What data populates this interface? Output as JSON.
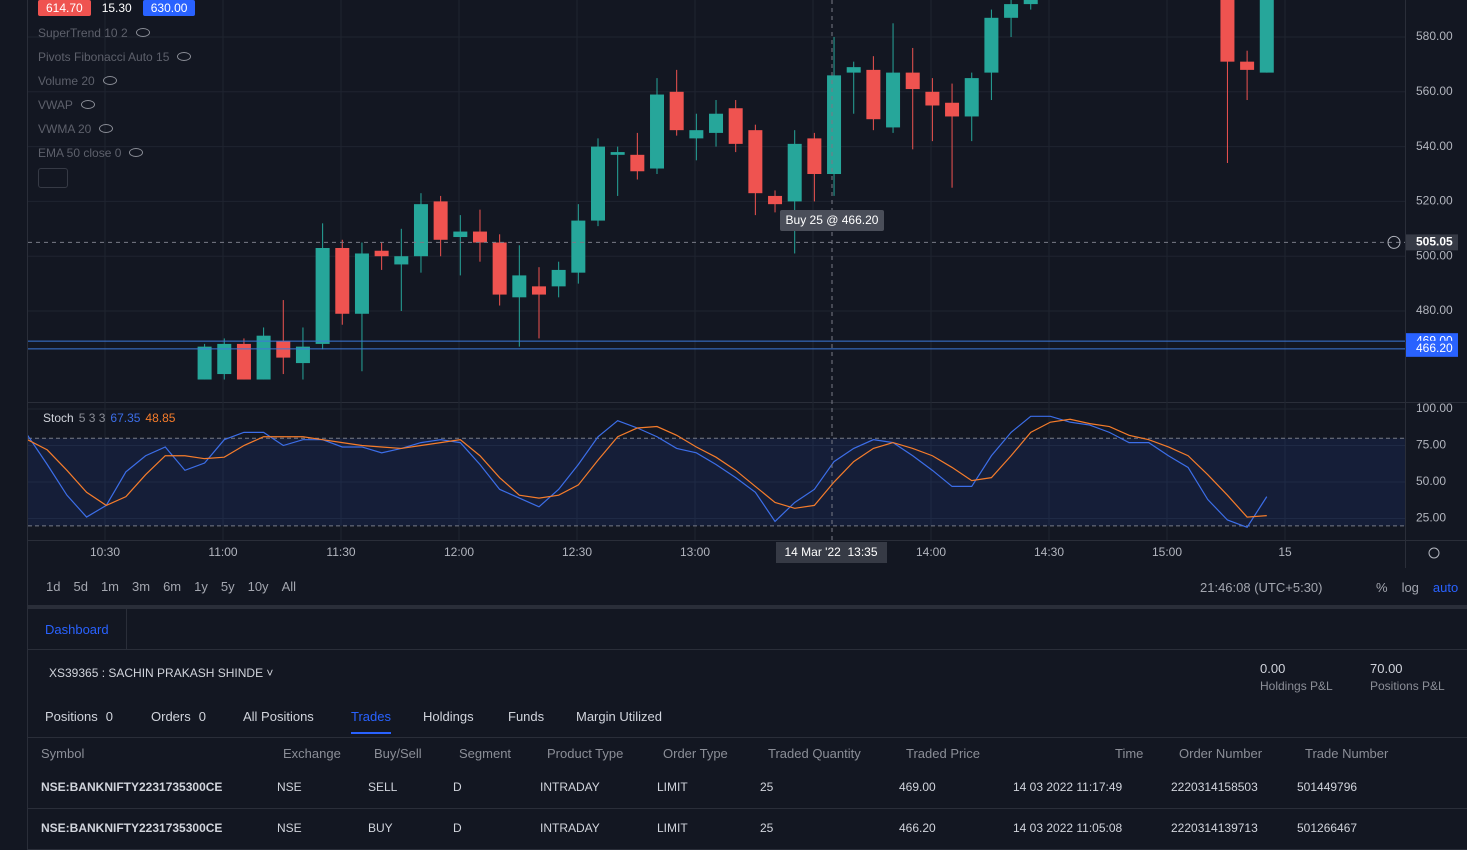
{
  "chart_data": [
    {
      "type": "candlestick",
      "header_badges": [
        "614.70",
        "15.30",
        "630.00"
      ],
      "indicators": [
        "SuperTrend 10 2",
        "Pivots Fibonacci Auto 15",
        "Volume 20",
        "VWAP",
        "VWMA 20",
        "EMA 50 close 0"
      ],
      "open": [
        455,
        457,
        468,
        455,
        469,
        461,
        468,
        503,
        479,
        502,
        497,
        500,
        520,
        507,
        509,
        505,
        485,
        489,
        489,
        494,
        513,
        537,
        537,
        532,
        560,
        543,
        545,
        554,
        546,
        522,
        520,
        543,
        530,
        567,
        568,
        547,
        567,
        560,
        556,
        551,
        567,
        587,
        592,
        null,
        null,
        null,
        null,
        null,
        null,
        null,
        null,
        null,
        596,
        571,
        567
      ],
      "high": [
        468,
        470,
        470,
        474,
        484,
        474,
        512,
        506,
        505,
        505,
        510,
        523,
        522,
        515,
        517,
        508,
        504,
        496,
        498,
        519,
        543,
        540,
        545,
        565,
        568,
        552,
        557,
        557,
        548,
        524,
        546,
        545,
        580,
        571,
        573,
        585,
        576,
        565,
        563,
        567,
        590,
        595,
        596,
        null,
        null,
        null,
        null,
        null,
        null,
        null,
        null,
        null,
        596,
        575,
        596
      ],
      "low": [
        455,
        455,
        455,
        455,
        457,
        455,
        466,
        475,
        458,
        495,
        480,
        494,
        500,
        493,
        498,
        482,
        467,
        470,
        485,
        490,
        511,
        522,
        528,
        530,
        544,
        535,
        540,
        538,
        515,
        516,
        501,
        520,
        522,
        552,
        546,
        545,
        539,
        542,
        525,
        542,
        557,
        580,
        590,
        null,
        null,
        null,
        null,
        null,
        null,
        null,
        null,
        null,
        534,
        557,
        567
      ],
      "close": [
        467,
        468,
        455,
        471,
        463,
        467,
        503,
        479,
        501,
        500,
        500,
        519,
        506,
        509,
        505,
        486,
        493,
        486,
        495,
        513,
        540,
        538,
        531,
        559,
        546,
        546,
        552,
        541,
        523,
        519,
        541,
        530,
        566,
        569,
        550,
        567,
        561,
        555,
        551,
        565,
        587,
        592,
        594,
        null,
        null,
        null,
        null,
        null,
        null,
        null,
        null,
        null,
        571,
        568,
        596
      ],
      "up_color": "#26a69a",
      "down_color": "#ef5350",
      "ylim": [
        446.8,
        593.5
      ],
      "yticks": [
        {
          "value": 580,
          "label": "580.00"
        },
        {
          "value": 560,
          "label": "560.00"
        },
        {
          "value": 540,
          "label": "540.00"
        },
        {
          "value": 520,
          "label": "520.00"
        },
        {
          "value": 500,
          "label": "500.00"
        },
        {
          "value": 480,
          "label": "480.00"
        }
      ],
      "levels": [
        {
          "value": 469,
          "label": "469.00"
        },
        {
          "value": 466.2,
          "label": "466.20"
        }
      ],
      "crosshair": {
        "value": 505.05,
        "label": "505.05",
        "time_label": "14 Mar '22  13:35",
        "tooltip": "Buy 25 @ 466.20"
      },
      "xticks": [
        "10:30",
        "11:00",
        "11:30",
        "12:00",
        "12:30",
        "13:00",
        "13:30",
        "14:00",
        "14:30",
        "15:00",
        "15"
      ],
      "grid": true
    },
    {
      "type": "line",
      "title": "Stoch",
      "params": "5 3 3",
      "series": [
        {
          "color": "#3c6ee8",
          "current": "67.35",
          "values": [
            82,
            62,
            41,
            26,
            34,
            57,
            68,
            74,
            58,
            63,
            79,
            84,
            84,
            75,
            79,
            79,
            74,
            74,
            70,
            73,
            77,
            79,
            77,
            62,
            45,
            39,
            33,
            45,
            62,
            81,
            92,
            87,
            81,
            73,
            70,
            62,
            53,
            43,
            23,
            36,
            45,
            64,
            73,
            79,
            77,
            68,
            58,
            47,
            47,
            68,
            84,
            95,
            95,
            91,
            89,
            84,
            77,
            77,
            68,
            60,
            38,
            24,
            19,
            40
          ]
        },
        {
          "color": "#f57c2b",
          "current": "48.85",
          "values": [
            79,
            72,
            58,
            43,
            34,
            40,
            55,
            68,
            68,
            66,
            67,
            75,
            81,
            81,
            81,
            79,
            77,
            75,
            74,
            73,
            75,
            77,
            79,
            68,
            53,
            41,
            39,
            41,
            48,
            65,
            81,
            87,
            88,
            82,
            74,
            67,
            58,
            47,
            36,
            32,
            34,
            50,
            64,
            73,
            77,
            73,
            68,
            60,
            51,
            53,
            68,
            84,
            91,
            93,
            90,
            88,
            82,
            79,
            74,
            68,
            55,
            41,
            26,
            27
          ]
        }
      ],
      "band": [
        20,
        80
      ],
      "ylim": [
        10.3,
        104.8
      ],
      "yticks": [
        {
          "value": 100,
          "label": "100.00"
        },
        {
          "value": 75,
          "label": "75.00"
        },
        {
          "value": 50,
          "label": "50.00"
        },
        {
          "value": 25,
          "label": "25.00"
        }
      ]
    }
  ],
  "toolbar": {
    "ranges": [
      "1d",
      "5d",
      "1m",
      "3m",
      "6m",
      "1y",
      "5y",
      "10y",
      "All"
    ],
    "clock": "21:46:08 (UTC+5:30)",
    "options": [
      "%",
      "log",
      "auto"
    ]
  },
  "panel": {
    "tab": "Dashboard",
    "account": "XS39365 : SACHIN PRAKASH SHINDE",
    "holdings_pl": "0.00",
    "holdings_pl_label": "Holdings P&L",
    "positions_pl": "70.00",
    "positions_pl_label": "Positions P&L",
    "tabs": [
      "Positions",
      "Orders",
      "All Positions",
      "Trades",
      "Holdings",
      "Funds",
      "Margin Utilized"
    ],
    "tab_counts": [
      "0",
      "0"
    ],
    "table": {
      "header": [
        "Symbol",
        "Exchange",
        "Buy/Sell",
        "Segment",
        "Product Type",
        "Order Type",
        "Traded Quantity",
        "Traded Price",
        "Time",
        "Order Number",
        "Trade Number"
      ],
      "rows": [
        [
          "NSE:BANKNIFTY2231735300CE",
          "NSE",
          "SELL",
          "D",
          "INTRADAY",
          "LIMIT",
          "25",
          "469.00",
          "14 03 2022 11:17:49",
          "2220314158503",
          "501449796"
        ],
        [
          "NSE:BANKNIFTY2231735300CE",
          "NSE",
          "BUY",
          "D",
          "INTRADAY",
          "LIMIT",
          "25",
          "466.20",
          "14 03 2022 11:05:08",
          "2220314139713",
          "501266467"
        ]
      ]
    }
  }
}
